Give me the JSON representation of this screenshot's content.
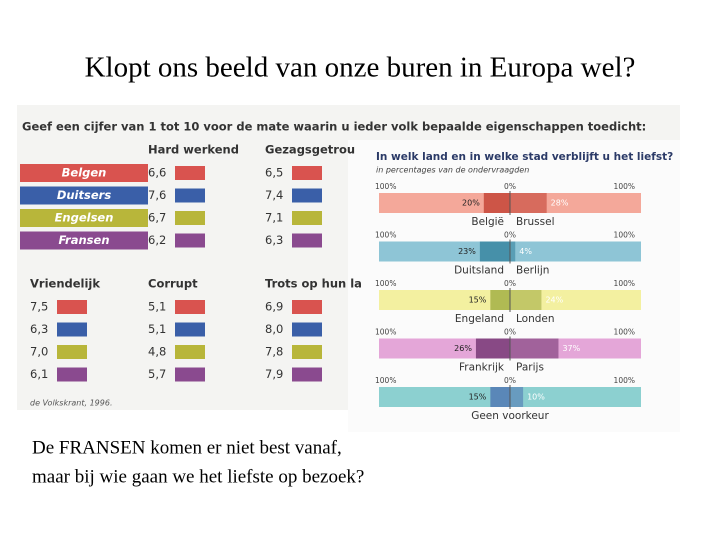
{
  "slide": {
    "title": "Klopt ons beeld van onze buren in Europa wel?",
    "caption_lines": [
      "De FRANSEN komen er niet best vanaf,",
      "maar bij wie gaan we het liefste op bezoek?"
    ]
  },
  "table": {
    "header": "Geef een cijfer van 1 tot 10 voor de mate waarin u ieder volk bepaalde eigenschappen toedicht:",
    "groups": [
      "Belgen",
      "Duitsers",
      "Engelsen",
      "Fransen"
    ],
    "columns": [
      {
        "name": "Hard werkend",
        "values": [
          "6,6",
          "7,6",
          "6,7",
          "6,2"
        ]
      },
      {
        "name": "Gezagsgetrou",
        "values": [
          "6,5",
          "7,4",
          "7,1",
          "6,3"
        ]
      },
      {
        "name": "Vriendelijk",
        "values": [
          "7,5",
          "6,3",
          "7,0",
          "6,1"
        ]
      },
      {
        "name": "Corrupt",
        "values": [
          "5,1",
          "5,1",
          "4,8",
          "5,7"
        ]
      },
      {
        "name": "Trots op hun la",
        "values": [
          "6,9",
          "8,0",
          "7,8",
          "7,9"
        ]
      }
    ],
    "source": "de Volkskrant, 1996."
  },
  "inset": {
    "title": "In welk land en in welke stad verblijft u het liefst?",
    "subtitle": "in percentages van de ondervraagden",
    "axis_labels": [
      "100%",
      "0%",
      "100%"
    ],
    "rows": [
      {
        "land": "België",
        "stad": "Brussel",
        "land_value": 20,
        "land_label": "20%",
        "stad_value": 28,
        "stad_label": "28%"
      },
      {
        "land": "Duitsland",
        "stad": "Berlijn",
        "land_value": 23,
        "land_label": "23%",
        "stad_value": 4,
        "stad_label": "4%"
      },
      {
        "land": "Engeland",
        "stad": "Londen",
        "land_value": 15,
        "land_label": "15%",
        "stad_value": 24,
        "stad_label": "24%"
      },
      {
        "land": "Frankrijk",
        "stad": "Parijs",
        "land_value": 26,
        "land_label": "26%",
        "stad_value": 37,
        "stad_label": "37%"
      },
      {
        "label": "Geen voorkeur",
        "land_value": 15,
        "land_label": "15%",
        "stad_value": 10,
        "stad_label": "10%"
      }
    ]
  }
}
